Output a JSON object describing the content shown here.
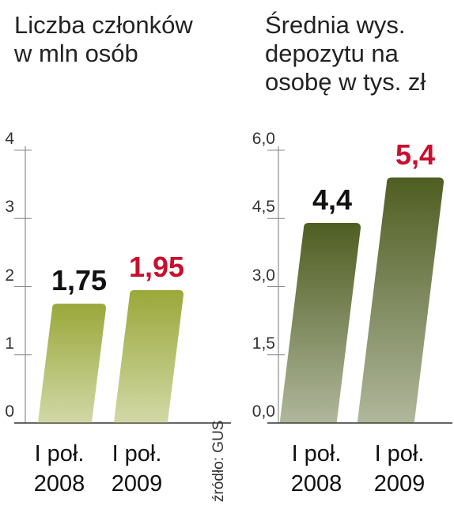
{
  "chart_data": [
    {
      "type": "bar",
      "title": "Liczba członków\nw mln osób",
      "categories": [
        "I poł.\n2008",
        "I poł.\n2009"
      ],
      "values": [
        1.75,
        1.95
      ],
      "value_labels": [
        "1,75",
        "1,95"
      ],
      "value_label_colors": [
        "#111111",
        "#c8102e"
      ],
      "color": "#9aa83a",
      "ylim": [
        0,
        4
      ],
      "yticks": [
        0,
        1,
        2,
        3,
        4
      ]
    },
    {
      "type": "bar",
      "title": "Średnia wys.\ndepozytu na\nosobę w tys. zł",
      "categories": [
        "I poł.\n2008",
        "I poł.\n2009"
      ],
      "values": [
        4.4,
        5.4
      ],
      "value_labels": [
        "4,4",
        "5,4"
      ],
      "value_label_colors": [
        "#111111",
        "#c8102e"
      ],
      "color": "#4f5e22",
      "ylim": [
        0,
        6
      ],
      "yticks": [
        {
          "value": 0,
          "label": "0,0"
        },
        {
          "value": 1.5,
          "label": "1,5"
        },
        {
          "value": 3,
          "label": "3,0"
        },
        {
          "value": 4.5,
          "label": "4,5"
        },
        {
          "value": 6,
          "label": "6,0"
        }
      ]
    }
  ],
  "source": "źródło: GUS"
}
